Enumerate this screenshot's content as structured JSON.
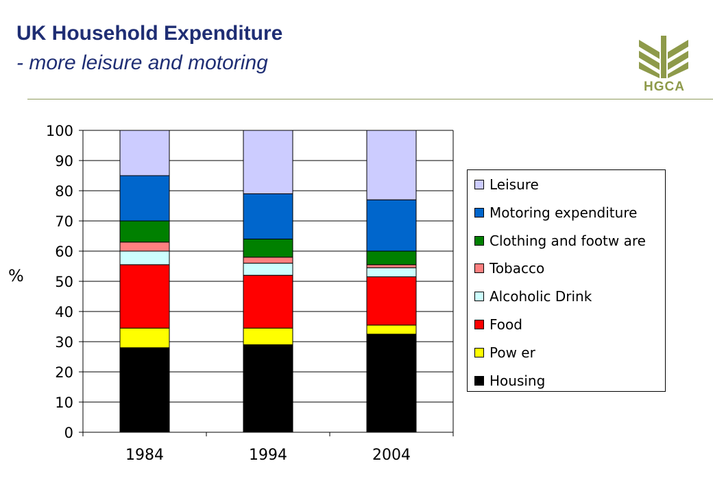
{
  "header": {
    "title": "UK Household Expenditure",
    "subtitle": "- more leisure and motoring",
    "logo_text": "HGCA",
    "logo_color": "#8e9a4a"
  },
  "chart_data": {
    "type": "bar",
    "stacked": true,
    "categories": [
      "1984",
      "1994",
      "2004"
    ],
    "ylabel": "%",
    "xlabel": "",
    "ylim": [
      0,
      100
    ],
    "yticks": [
      0,
      10,
      20,
      30,
      40,
      50,
      60,
      70,
      80,
      90,
      100
    ],
    "grid": true,
    "legend_position": "right",
    "series": [
      {
        "name": "Housing",
        "color": "#000000",
        "values": [
          28,
          29,
          32.5
        ]
      },
      {
        "name": "Power",
        "color": "#ffff00",
        "values": [
          6.5,
          5.5,
          3
        ]
      },
      {
        "name": "Food",
        "color": "#ff0000",
        "values": [
          21,
          17.5,
          16
        ]
      },
      {
        "name": "Alcoholic Drink",
        "color": "#ccffff",
        "values": [
          4.5,
          4,
          3
        ]
      },
      {
        "name": "Tobacco",
        "color": "#ff8080",
        "values": [
          3,
          2,
          1
        ]
      },
      {
        "name": "Clothing and footwear",
        "color": "#008000",
        "values": [
          7,
          6,
          4.5
        ]
      },
      {
        "name": "Motoring expenditure",
        "color": "#0066cc",
        "values": [
          15,
          15,
          17
        ]
      },
      {
        "name": "Leisure",
        "color": "#ccccff",
        "values": [
          15,
          21,
          23
        ]
      }
    ],
    "legend_labels": [
      "Leisure",
      "Motoring expenditure",
      "Clothing and footw are",
      "Tobacco",
      "Alcoholic Drink",
      "Food",
      "Pow er",
      "Housing"
    ]
  }
}
